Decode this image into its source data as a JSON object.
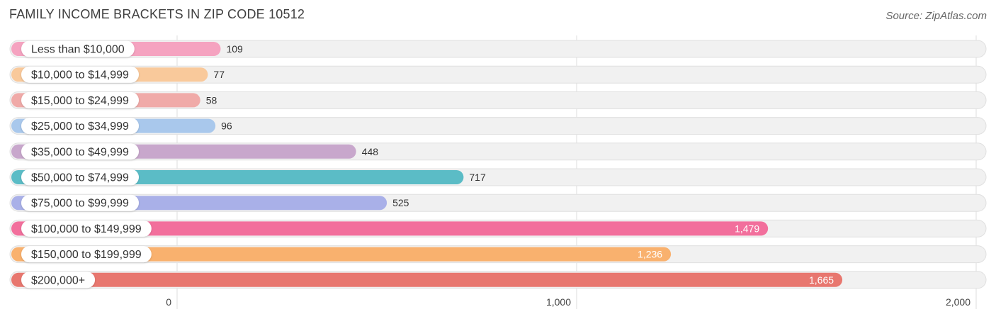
{
  "chart_data": {
    "type": "bar",
    "orientation": "horizontal",
    "title": "FAMILY INCOME BRACKETS IN ZIP CODE 10512",
    "source": "Source: ZipAtlas.com",
    "categories": [
      "Less than $10,000",
      "$10,000 to $14,999",
      "$15,000 to $24,999",
      "$25,000 to $34,999",
      "$35,000 to $49,999",
      "$50,000 to $74,999",
      "$75,000 to $99,999",
      "$100,000 to $149,999",
      "$150,000 to $199,999",
      "$200,000+"
    ],
    "values": [
      109,
      77,
      58,
      96,
      448,
      717,
      525,
      1479,
      1236,
      1665
    ],
    "value_labels": [
      "109",
      "77",
      "58",
      "96",
      "448",
      "717",
      "525",
      "1,479",
      "1,236",
      "1,665"
    ],
    "colors": [
      "#f5a3c0",
      "#f9c99b",
      "#f0aaa8",
      "#a9c8ec",
      "#c8a7cc",
      "#5bbcc6",
      "#a9b0e8",
      "#f26f9c",
      "#f9b16e",
      "#e8776f"
    ],
    "xlim": [
      0,
      2000
    ],
    "ticks": [
      0,
      1000,
      2000
    ],
    "tick_labels": [
      "0",
      "1,000",
      "2,000"
    ],
    "xlabel": "",
    "ylabel": "",
    "grid": true
  }
}
